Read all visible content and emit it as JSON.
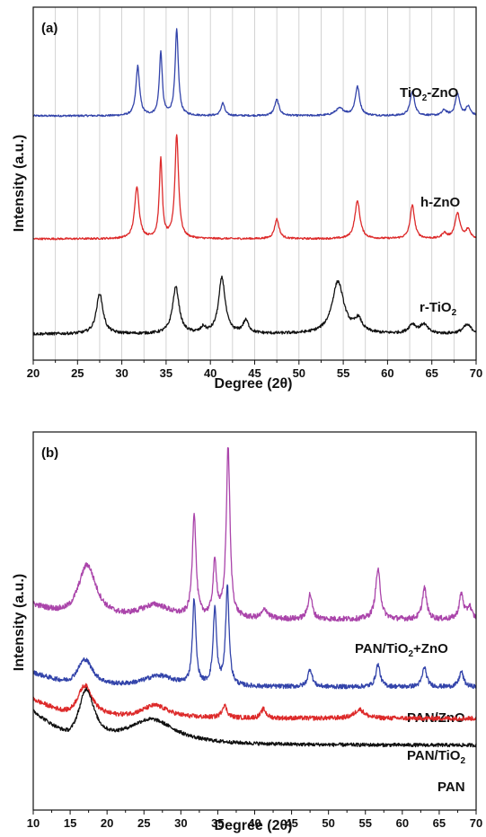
{
  "chart_data": [
    {
      "type": "line",
      "panel_label": "(a)",
      "xlabel": "Degree (2θ)",
      "ylabel": "Intensity (a.u.)",
      "xlim": [
        20,
        70
      ],
      "xticks": [
        20,
        25,
        30,
        35,
        40,
        45,
        50,
        55,
        60,
        65,
        70
      ],
      "grid": "vertical",
      "series": [
        {
          "name": "TiO2-ZnO",
          "label_main": "TiO",
          "label_sub": "2",
          "label_tail": "-ZnO",
          "color": "#3344aa",
          "baseline": 0,
          "peaks": [
            [
              31.8,
              55,
              0.25
            ],
            [
              34.4,
              70,
              0.2
            ],
            [
              36.2,
              95,
              0.22
            ],
            [
              41.4,
              14,
              0.25
            ],
            [
              47.5,
              18,
              0.3
            ],
            [
              54.6,
              8,
              0.6
            ],
            [
              56.6,
              32,
              0.3
            ],
            [
              62.8,
              27,
              0.3
            ],
            [
              66.4,
              6,
              0.3
            ],
            [
              67.9,
              24,
              0.3
            ],
            [
              69.1,
              10,
              0.3
            ]
          ]
        },
        {
          "name": "h-ZnO",
          "label_main": "h-ZnO",
          "label_sub": "",
          "label_tail": "",
          "color": "#dd2a2a",
          "baseline": 0,
          "peaks": [
            [
              31.7,
              58,
              0.3
            ],
            [
              34.4,
              88,
              0.2
            ],
            [
              36.2,
              115,
              0.25
            ],
            [
              47.5,
              22,
              0.3
            ],
            [
              56.6,
              42,
              0.35
            ],
            [
              62.8,
              37,
              0.3
            ],
            [
              66.4,
              6,
              0.3
            ],
            [
              67.9,
              28,
              0.35
            ],
            [
              69.1,
              10,
              0.3
            ]
          ]
        },
        {
          "name": "r-TiO2",
          "label_main": "r-TiO",
          "label_sub": "2",
          "label_tail": "",
          "color": "#111111",
          "baseline": 0,
          "peaks": [
            [
              27.5,
              45,
              0.45
            ],
            [
              36.1,
              52,
              0.45
            ],
            [
              39.2,
              6,
              0.3
            ],
            [
              41.3,
              62,
              0.45
            ],
            [
              44.0,
              14,
              0.4
            ],
            [
              54.4,
              58,
              0.8
            ],
            [
              56.7,
              14,
              0.5
            ],
            [
              62.8,
              10,
              0.5
            ],
            [
              64.1,
              10,
              0.5
            ],
            [
              69.0,
              10,
              0.6
            ]
          ]
        }
      ]
    },
    {
      "type": "line",
      "panel_label": "(b)",
      "xlabel": "Degree (2θ)",
      "ylabel": "Intensity (a.u.)",
      "xlim": [
        10,
        70
      ],
      "xticks": [
        10,
        15,
        20,
        25,
        30,
        35,
        40,
        45,
        50,
        55,
        60,
        65,
        70
      ],
      "grid": "none",
      "series": [
        {
          "name": "PAN/TiO2+ZnO",
          "label_main": "PAN/TiO",
          "label_sub": "2",
          "label_tail": "+ZnO",
          "color": "#aa44aa",
          "peaks": [
            [
              17.3,
              60,
              1.5
            ],
            [
              26.5,
              15,
              2.5
            ],
            [
              31.8,
              115,
              0.3
            ],
            [
              34.6,
              60,
              0.3
            ],
            [
              36.4,
              190,
              0.3
            ],
            [
              41.4,
              10,
              0.5
            ],
            [
              47.5,
              28,
              0.35
            ],
            [
              56.7,
              55,
              0.4
            ],
            [
              63.0,
              35,
              0.35
            ],
            [
              68.0,
              28,
              0.35
            ],
            [
              69.1,
              14,
              0.35
            ]
          ]
        },
        {
          "name": "PAN/ZnO",
          "label_main": "PAN/ZnO",
          "label_sub": "",
          "label_tail": "",
          "color": "#3344aa",
          "peaks": [
            [
              17.0,
              30,
              1.3
            ],
            [
              27.0,
              12,
              2.5
            ],
            [
              31.8,
              95,
              0.28
            ],
            [
              34.6,
              85,
              0.28
            ],
            [
              36.3,
              110,
              0.28
            ],
            [
              47.5,
              20,
              0.35
            ],
            [
              56.7,
              25,
              0.35
            ],
            [
              63.0,
              22,
              0.35
            ],
            [
              68.0,
              17,
              0.35
            ]
          ]
        },
        {
          "name": "PAN/TiO2",
          "label_main": "PAN/TiO",
          "label_sub": "2",
          "label_tail": "",
          "color": "#dd2a2a",
          "peaks": [
            [
              17.0,
              36,
              1.3
            ],
            [
              26.5,
              14,
              2.2
            ],
            [
              35.9,
              14,
              0.4
            ],
            [
              41.2,
              10,
              0.4
            ],
            [
              54.2,
              10,
              0.8
            ]
          ]
        },
        {
          "name": "PAN",
          "label_main": "PAN",
          "label_sub": "",
          "label_tail": "",
          "color": "#111111",
          "peaks": [
            [
              17.2,
              58,
              1.3
            ],
            [
              26.0,
              28,
              4.0
            ]
          ]
        }
      ]
    }
  ]
}
